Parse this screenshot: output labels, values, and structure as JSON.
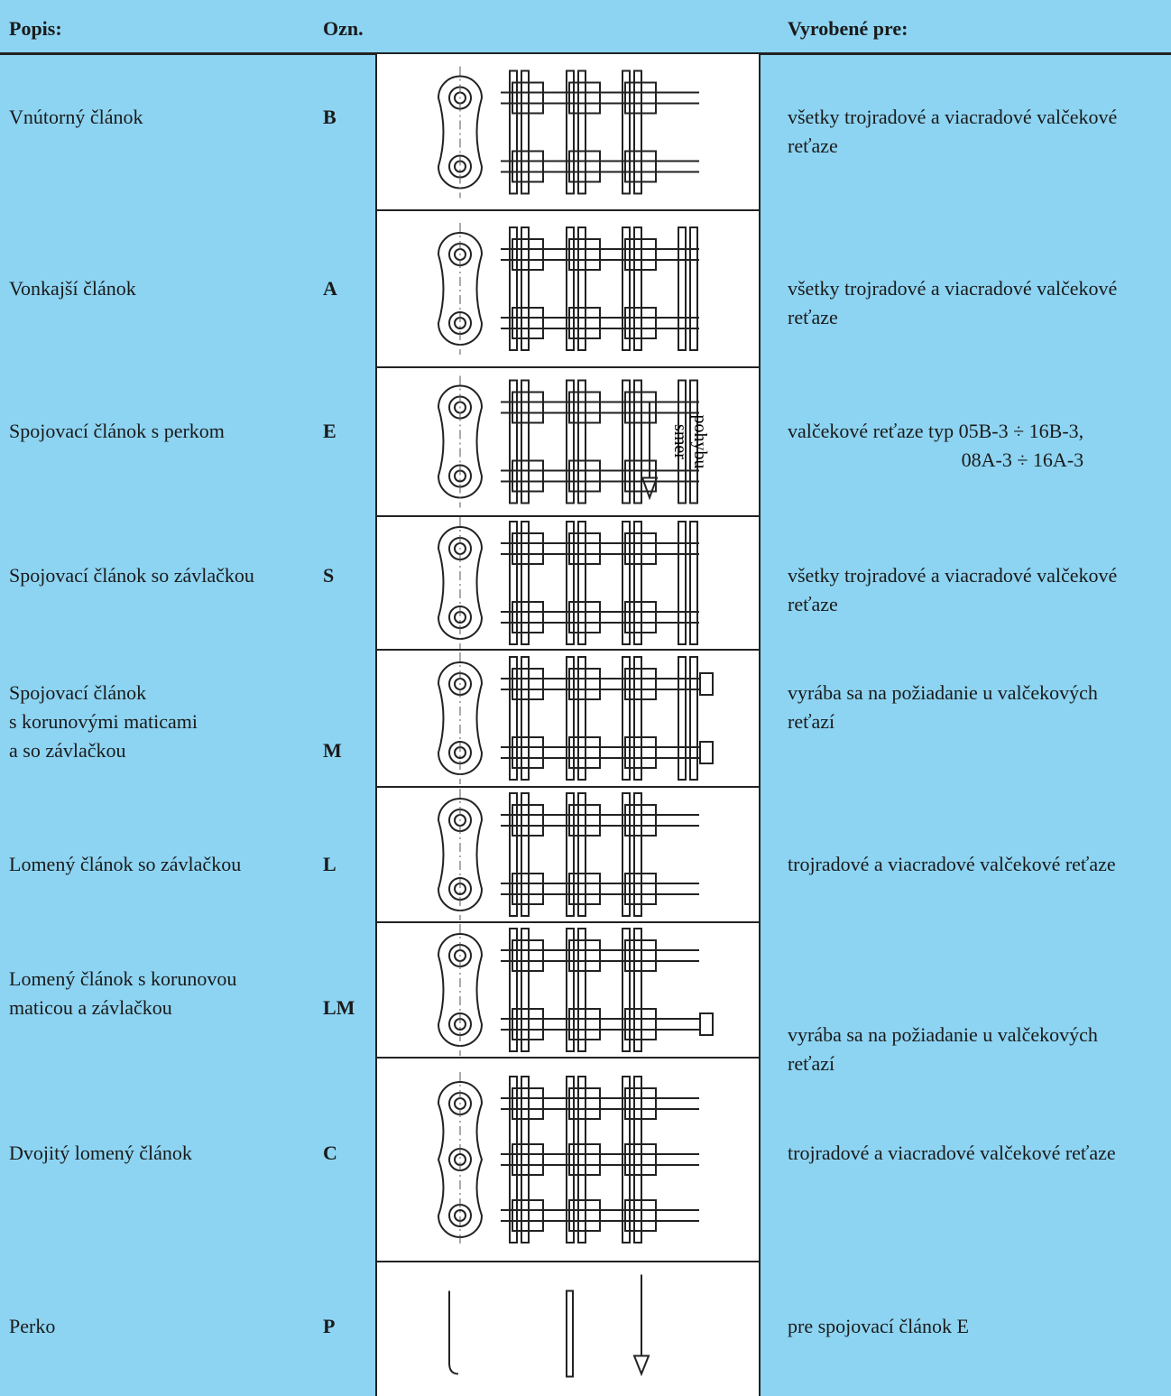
{
  "header": {
    "popis": "Popis:",
    "ozn": "Ozn.",
    "vyrobene": "Vyrobené pre:"
  },
  "rows": [
    {
      "popis": [
        "Vnútorný článok"
      ],
      "ozn": "B",
      "vyrobene": [
        "všetky trojradové a viacradové valčekové",
        "reťaze"
      ]
    },
    {
      "popis": [
        "Vonkajší článok"
      ],
      "ozn": "A",
      "vyrobene": [
        "všetky trojradové a viacradové valčekové",
        "reťaze"
      ]
    },
    {
      "popis": [
        "Spojovací článok s perkom"
      ],
      "ozn": "E",
      "vyrobene": [
        "valčekové reťaze typ 05B-3 ÷ 16B-3,",
        "08A-3 ÷ 16A-3"
      ],
      "note": [
        "smer",
        "pohybu"
      ]
    },
    {
      "popis": [
        "Spojovací článok so závlačkou"
      ],
      "ozn": "S",
      "vyrobene": [
        "všetky trojradové a viacradové valčekové",
        "reťaze"
      ]
    },
    {
      "popis": [
        "Spojovací článok",
        "s korunovými maticami",
        "a so závlačkou"
      ],
      "ozn": "M",
      "vyrobene": [
        "vyrába sa na požiadanie u valčekových",
        "reťazí"
      ]
    },
    {
      "popis": [
        "Lomený článok so závlačkou"
      ],
      "ozn": "L",
      "vyrobene": [
        "trojradové a viacradové valčekové reťaze"
      ]
    },
    {
      "popis": [
        "Lomený článok s korunovou",
        "maticou a závlačkou"
      ],
      "ozn": "LM",
      "vyrobene": [
        "vyrába sa na požiadanie u valčekových",
        "reťazí"
      ]
    },
    {
      "popis": [
        "Dvojitý lomený článok"
      ],
      "ozn": "C",
      "vyrobene": [
        "trojradové a viacradové valčekové reťaze"
      ]
    },
    {
      "popis": [
        "Perko"
      ],
      "ozn": "P",
      "vyrobene": [
        "pre spojovací článok E"
      ]
    }
  ]
}
